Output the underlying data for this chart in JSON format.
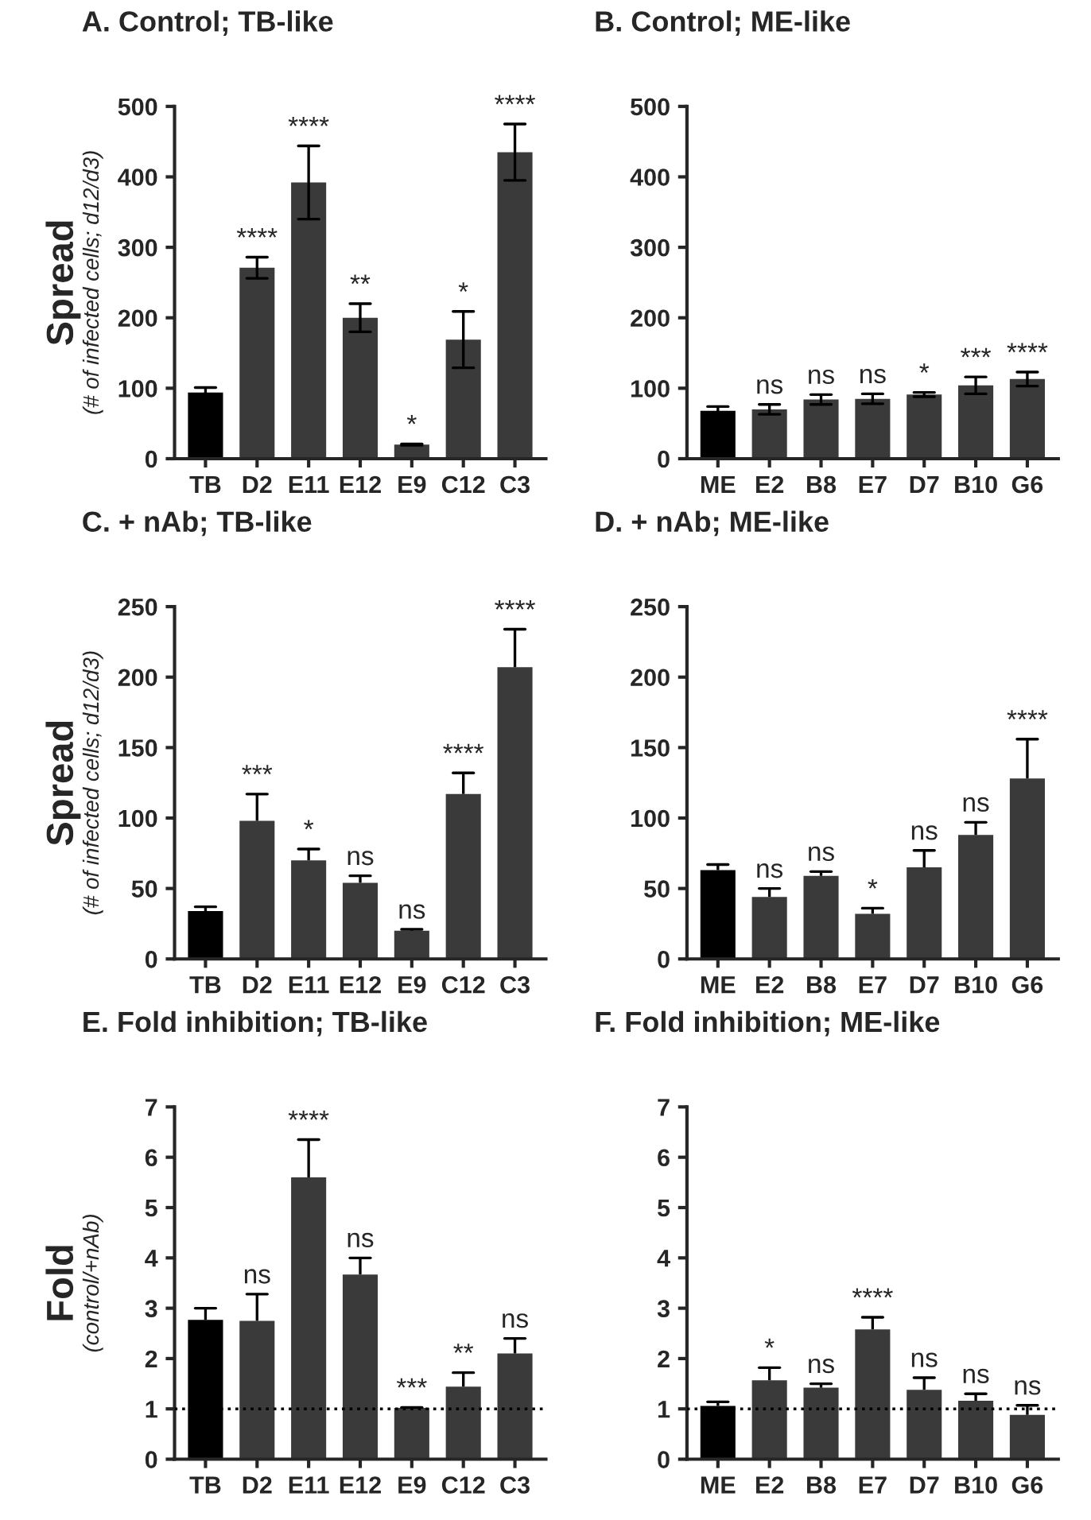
{
  "chart_data": [
    {
      "type": "bar",
      "title": "A. Control; TB-like",
      "ylabel": "Spread\n(# of infected cells; d12/d3)",
      "categories": [
        "TB",
        "D2",
        "E11",
        "E12",
        "E9",
        "C12",
        "C3"
      ],
      "values": [
        94,
        271,
        392,
        200,
        20,
        169,
        435
      ],
      "errors": [
        7,
        15,
        52,
        20,
        1,
        40,
        40
      ],
      "colors": [
        "#000000",
        "#3a3a3a",
        "#3a3a3a",
        "#3a3a3a",
        "#3a3a3a",
        "#3a3a3a",
        "#3a3a3a"
      ],
      "ylim": [
        0,
        500
      ],
      "yticks": [
        0,
        100,
        200,
        300,
        400,
        500
      ],
      "annotations": [
        {
          "text": "****",
          "x": "D2",
          "y": 286
        },
        {
          "text": "****",
          "x": "E11",
          "y": 444
        },
        {
          "text": "**",
          "x": "E12",
          "y": 220
        },
        {
          "text": "*",
          "x": "E9",
          "y": 21
        },
        {
          "text": "*",
          "x": "C12",
          "y": 209
        },
        {
          "text": "****",
          "x": "C3",
          "y": 475
        }
      ]
    },
    {
      "type": "bar",
      "title": "B. Control; ME-like",
      "categories": [
        "ME",
        "E2",
        "B8",
        "E7",
        "D7",
        "B10",
        "G6"
      ],
      "values": [
        68,
        70,
        84,
        85,
        91,
        104,
        113
      ],
      "errors": [
        6,
        7,
        7,
        7,
        3,
        12,
        10
      ],
      "colors": [
        "#000000",
        "#3a3a3a",
        "#3a3a3a",
        "#3a3a3a",
        "#3a3a3a",
        "#3a3a3a",
        "#3a3a3a"
      ],
      "ylim": [
        0,
        500
      ],
      "yticks": [
        0,
        100,
        200,
        300,
        400,
        500
      ],
      "annotations": [
        {
          "text": "ns",
          "x": "E2",
          "y": 77
        },
        {
          "text": "ns",
          "x": "B8",
          "y": 91
        },
        {
          "text": "ns",
          "x": "E7",
          "y": 92
        },
        {
          "text": "*",
          "x": "D7",
          "y": 94
        },
        {
          "text": "***",
          "x": "B10",
          "y": 116
        },
        {
          "text": "****",
          "x": "G6",
          "y": 123
        }
      ]
    },
    {
      "type": "bar",
      "title": "C. + nAb; TB-like",
      "ylabel": "Spread\n(# of infected cells; d12/d3)",
      "categories": [
        "TB",
        "D2",
        "E11",
        "E12",
        "E9",
        "C12",
        "C3"
      ],
      "values": [
        34,
        98,
        70,
        54,
        20,
        117,
        207
      ],
      "errors": [
        [
          34,
          37
        ],
        [
          98,
          117
        ],
        [
          70,
          78
        ],
        [
          54,
          59
        ],
        [
          20,
          21
        ],
        [
          117,
          132
        ],
        [
          207,
          234
        ]
      ],
      "colors": [
        "#000000",
        "#3a3a3a",
        "#3a3a3a",
        "#3a3a3a",
        "#3a3a3a",
        "#3a3a3a",
        "#3a3a3a"
      ],
      "ylim": [
        0,
        250
      ],
      "yticks": [
        0,
        50,
        100,
        150,
        200,
        250
      ],
      "annotations": [
        {
          "text": "***",
          "x": "D2",
          "y": 117
        },
        {
          "text": "*",
          "x": "E11",
          "y": 78
        },
        {
          "text": "ns",
          "x": "E12",
          "y": 59
        },
        {
          "text": "ns",
          "x": "E9",
          "y": 21
        },
        {
          "text": "****",
          "x": "C12",
          "y": 132
        },
        {
          "text": "****",
          "x": "C3",
          "y": 234
        }
      ]
    },
    {
      "type": "bar",
      "title": "D. + nAb; ME-like",
      "categories": [
        "ME",
        "E2",
        "B8",
        "E7",
        "D7",
        "B10",
        "G6"
      ],
      "values": [
        63,
        44,
        59,
        32,
        65,
        88,
        128
      ],
      "errors": [
        [
          63,
          67
        ],
        [
          44,
          50
        ],
        [
          59,
          62
        ],
        [
          32,
          36
        ],
        [
          65,
          77
        ],
        [
          88,
          97
        ],
        [
          128,
          156
        ]
      ],
      "colors": [
        "#000000",
        "#3a3a3a",
        "#3a3a3a",
        "#3a3a3a",
        "#3a3a3a",
        "#3a3a3a",
        "#3a3a3a"
      ],
      "ylim": [
        0,
        250
      ],
      "yticks": [
        0,
        50,
        100,
        150,
        200,
        250
      ],
      "annotations": [
        {
          "text": "ns",
          "x": "E2",
          "y": 50
        },
        {
          "text": "ns",
          "x": "B8",
          "y": 62
        },
        {
          "text": "*",
          "x": "E7",
          "y": 36
        },
        {
          "text": "ns",
          "x": "D7",
          "y": 77
        },
        {
          "text": "ns",
          "x": "B10",
          "y": 97
        },
        {
          "text": "****",
          "x": "G6",
          "y": 156
        }
      ]
    },
    {
      "type": "bar",
      "title": "E. Fold inhibition; TB-like",
      "ylabel": "Fold\n(control/+nAb)",
      "categories": [
        "TB",
        "D2",
        "E11",
        "E12",
        "E9",
        "C12",
        "C3"
      ],
      "values": [
        2.77,
        2.75,
        5.6,
        3.67,
        1.02,
        1.44,
        2.1
      ],
      "errors": [
        [
          2.77,
          3.0
        ],
        [
          2.75,
          3.28
        ],
        [
          5.6,
          6.35
        ],
        [
          3.67,
          4.0
        ],
        [
          1.02,
          1.03
        ],
        [
          1.44,
          1.72
        ],
        [
          2.1,
          2.4
        ]
      ],
      "colors": [
        "#000000",
        "#3a3a3a",
        "#3a3a3a",
        "#3a3a3a",
        "#3a3a3a",
        "#3a3a3a",
        "#3a3a3a"
      ],
      "ylim": [
        0,
        7
      ],
      "yticks": [
        0,
        1,
        2,
        3,
        4,
        5,
        6,
        7
      ],
      "ref_lines": [
        {
          "axis": "y",
          "value": 1,
          "line_style": "dotted",
          "color": "#000000"
        }
      ],
      "annotations": [
        {
          "text": "ns",
          "x": "D2",
          "y": 3.28
        },
        {
          "text": "****",
          "x": "E11",
          "y": 6.35
        },
        {
          "text": "ns",
          "x": "E12",
          "y": 4.0
        },
        {
          "text": "***",
          "x": "E9",
          "y": 1.03
        },
        {
          "text": "**",
          "x": "C12",
          "y": 1.72
        },
        {
          "text": "ns",
          "x": "C3",
          "y": 2.4
        }
      ]
    },
    {
      "type": "bar",
      "title": "F. Fold inhibition; ME-like",
      "categories": [
        "ME",
        "E2",
        "B8",
        "E7",
        "D7",
        "B10",
        "G6"
      ],
      "values": [
        1.06,
        1.57,
        1.42,
        2.58,
        1.38,
        1.16,
        0.88
      ],
      "errors": [
        [
          1.06,
          1.14
        ],
        [
          1.57,
          1.82
        ],
        [
          1.42,
          1.5
        ],
        [
          2.58,
          2.82
        ],
        [
          1.38,
          1.62
        ],
        [
          1.16,
          1.3
        ],
        [
          0.88,
          1.07
        ]
      ],
      "colors": [
        "#000000",
        "#3a3a3a",
        "#3a3a3a",
        "#3a3a3a",
        "#3a3a3a",
        "#3a3a3a",
        "#3a3a3a"
      ],
      "ylim": [
        0,
        7
      ],
      "yticks": [
        0,
        1,
        2,
        3,
        4,
        5,
        6,
        7
      ],
      "ref_lines": [
        {
          "axis": "y",
          "value": 1,
          "line_style": "dotted",
          "color": "#000000"
        }
      ],
      "annotations": [
        {
          "text": "*",
          "x": "E2",
          "y": 1.82
        },
        {
          "text": "ns",
          "x": "B8",
          "y": 1.5
        },
        {
          "text": "****",
          "x": "E7",
          "y": 2.82
        },
        {
          "text": "ns",
          "x": "D7",
          "y": 1.62
        },
        {
          "text": "ns",
          "x": "B10",
          "y": 1.3
        },
        {
          "text": "ns",
          "x": "G6",
          "y": 1.07
        }
      ]
    }
  ]
}
